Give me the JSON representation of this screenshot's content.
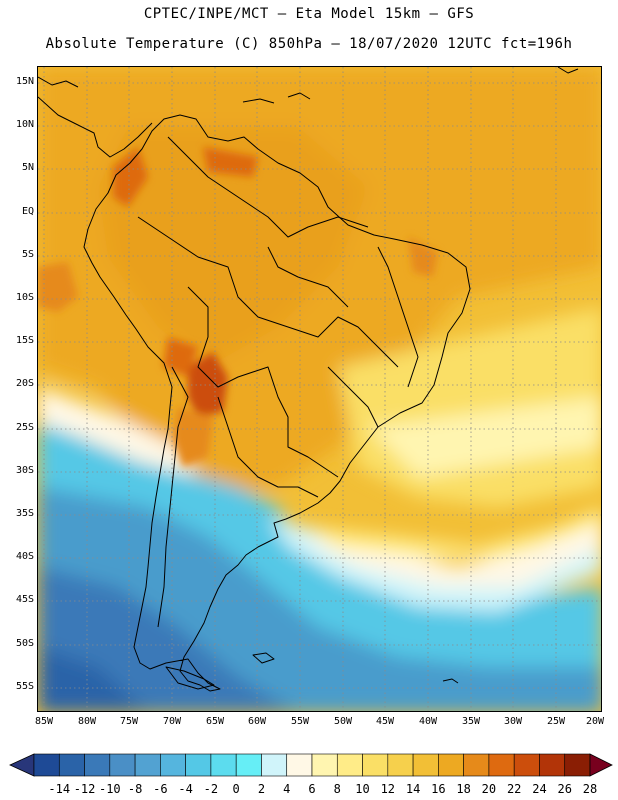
{
  "header": {
    "title_line1": "CPTEC/INPE/MCT –  Eta Model 15km – GFS",
    "title_line2": "Absolute Temperature (C) 850hPa – 18/07/2020 12UTC fct=196h"
  },
  "map": {
    "lat_labels": [
      "15N",
      "10N",
      "5N",
      "EQ",
      "5S",
      "10S",
      "15S",
      "20S",
      "25S",
      "30S",
      "35S",
      "40S",
      "45S",
      "50S",
      "55S"
    ],
    "lon_labels": [
      "85W",
      "80W",
      "75W",
      "70W",
      "65W",
      "60W",
      "55W",
      "50W",
      "45W",
      "40W",
      "35W",
      "30W",
      "25W",
      "20W"
    ]
  },
  "colorbar": {
    "labels": [
      "-14",
      "-12",
      "-10",
      "-8",
      "-6",
      "-4",
      "-2",
      "0",
      "2",
      "4",
      "6",
      "8",
      "10",
      "12",
      "14",
      "16",
      "18",
      "20",
      "22",
      "24",
      "26",
      "28"
    ],
    "colors": [
      "#1e4a96",
      "#2a63a8",
      "#3a79b8",
      "#4a8fc6",
      "#52a2d2",
      "#55b5de",
      "#54c8e6",
      "#5cdcee",
      "#66eef6",
      "#d0f4fa",
      "#fff8e6",
      "#fff5b0",
      "#ffec88",
      "#fadf66",
      "#f6d04c",
      "#f2bf36",
      "#eda922",
      "#e68a1a",
      "#de6a10",
      "#cc4e0c",
      "#b23408",
      "#8a1e04"
    ],
    "under_color": "#28367a",
    "over_color": "#78001e"
  }
}
